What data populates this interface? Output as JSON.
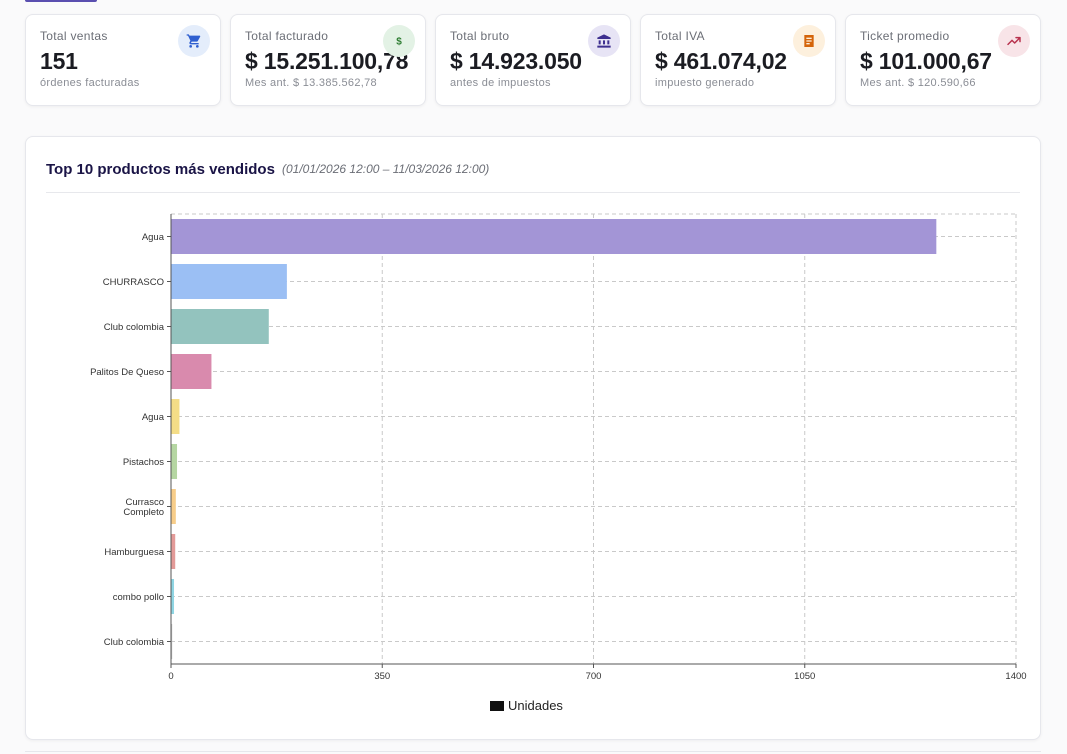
{
  "kpis": [
    {
      "title": "Total ventas",
      "value": "151",
      "sub": "órdenes facturadas",
      "icon": "cart-icon",
      "icon_color": "#2f5fd0",
      "icon_bg": "#e4edfb"
    },
    {
      "title": "Total facturado",
      "value": "$ 15.251.100,78",
      "sub": "Mes ant. $ 13.385.562,78",
      "icon": "dollar-icon",
      "icon_color": "#2e7d32",
      "icon_bg": "#e3f2e5"
    },
    {
      "title": "Total bruto",
      "value": "$ 14.923.050",
      "sub": "antes de impuestos",
      "icon": "bank-icon",
      "icon_color": "#3d2f8f",
      "icon_bg": "#e7e4f5"
    },
    {
      "title": "Total IVA",
      "value": "$ 461.074,02",
      "sub": "impuesto generado",
      "icon": "receipt-icon",
      "icon_color": "#d4640a",
      "icon_bg": "#fdf0dd"
    },
    {
      "title": "Ticket promedio",
      "value": "$ 101.000,67",
      "sub": "Mes ant. $ 120.590,66",
      "icon": "trending-up-icon",
      "icon_color": "#b8324e",
      "icon_bg": "#f8e4e8"
    }
  ],
  "chart_card": {
    "title": "Top 10 productos más vendidos",
    "range": "(01/01/2026 12:00 – 11/03/2026 12:00)"
  },
  "chart_data": {
    "type": "bar",
    "orientation": "horizontal",
    "categories": [
      "Agua",
      "CHURRASCO",
      "Club colombia",
      "Palitos De Queso",
      "Agua",
      "Pistachos",
      "Currasco Completo",
      "Hamburguesa",
      "combo pollo",
      "Club colombia"
    ],
    "series": [
      {
        "name": "Unidades",
        "values": [
          1268,
          192,
          162,
          67,
          14,
          10,
          8,
          7,
          5,
          2
        ]
      }
    ],
    "colors": [
      "#a395d6",
      "#9bbff4",
      "#93c3be",
      "#d98aad",
      "#f4dd87",
      "#b5d6a2",
      "#f7cd8a",
      "#e39a98",
      "#8fd5e3",
      "#c8c8c8"
    ],
    "xlim": [
      0,
      1400
    ],
    "xticks": [
      0,
      350,
      700,
      1050,
      1400
    ],
    "grid": true,
    "legend_position": "bottom"
  }
}
